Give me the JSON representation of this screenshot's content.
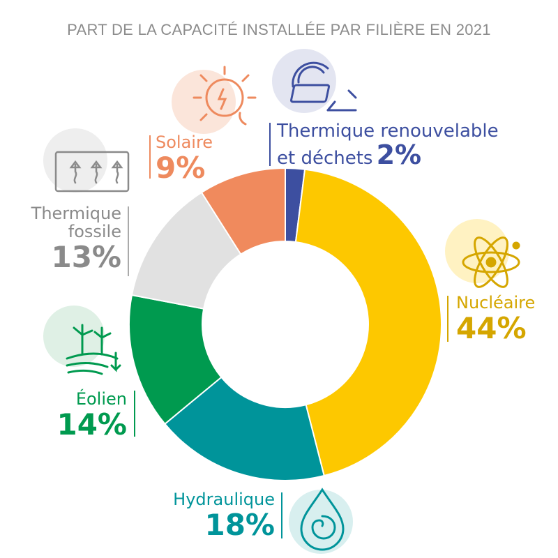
{
  "title": "PART DE LA CAPACITÉ INSTALLÉE PAR FILIÈRE EN 2021",
  "chart_data": {
    "type": "pie",
    "title": "PART DE LA CAPACITÉ INSTALLÉE PAR FILIÈRE EN 2021",
    "unit": "%",
    "slices": [
      {
        "name": "Thermique renouvelable et déchets",
        "value": 2,
        "label": "2%",
        "color": "#3d4fa0",
        "icon": "biomass-icon"
      },
      {
        "name": "Nucléaire",
        "value": 44,
        "label": "44%",
        "color": "#fdc800",
        "icon": "atom-icon"
      },
      {
        "name": "Hydraulique",
        "value": 18,
        "label": "18%",
        "color": "#00949a",
        "icon": "water-drop-icon"
      },
      {
        "name": "Éolien",
        "value": 14,
        "label": "14%",
        "color": "#009a4f",
        "icon": "wind-turbine-icon"
      },
      {
        "name": "Thermique fossile",
        "value": 13,
        "label": "13%",
        "color": "#e1e1e1",
        "icon": "heat-radiator-icon"
      },
      {
        "name": "Solaire",
        "value": 9,
        "label": "9%",
        "color": "#f08a5d",
        "icon": "sun-icon"
      }
    ]
  },
  "labels": {
    "thermique_renouvelable": {
      "line1": "Thermique renouvelable",
      "line2": "et déchets",
      "pct": "2%"
    },
    "nucleaire": {
      "name": "Nucléaire",
      "pct": "44%"
    },
    "hydraulique": {
      "name": "Hydraulique",
      "pct": "18%"
    },
    "eolien": {
      "name": "Éolien",
      "pct": "14%"
    },
    "thermique_fossile": {
      "line1": "Thermique",
      "line2": "fossile",
      "pct": "13%"
    },
    "solaire": {
      "name": "Solaire",
      "pct": "9%"
    }
  },
  "colors": {
    "title": "#8c8c8c",
    "thermique_renouvelable": "#3d4fa0",
    "nucleaire": "#d5a600",
    "hydraulique": "#00949a",
    "eolien": "#009a4f",
    "thermique_fossile": "#8a8a8a",
    "solaire": "#ee8a5e"
  }
}
